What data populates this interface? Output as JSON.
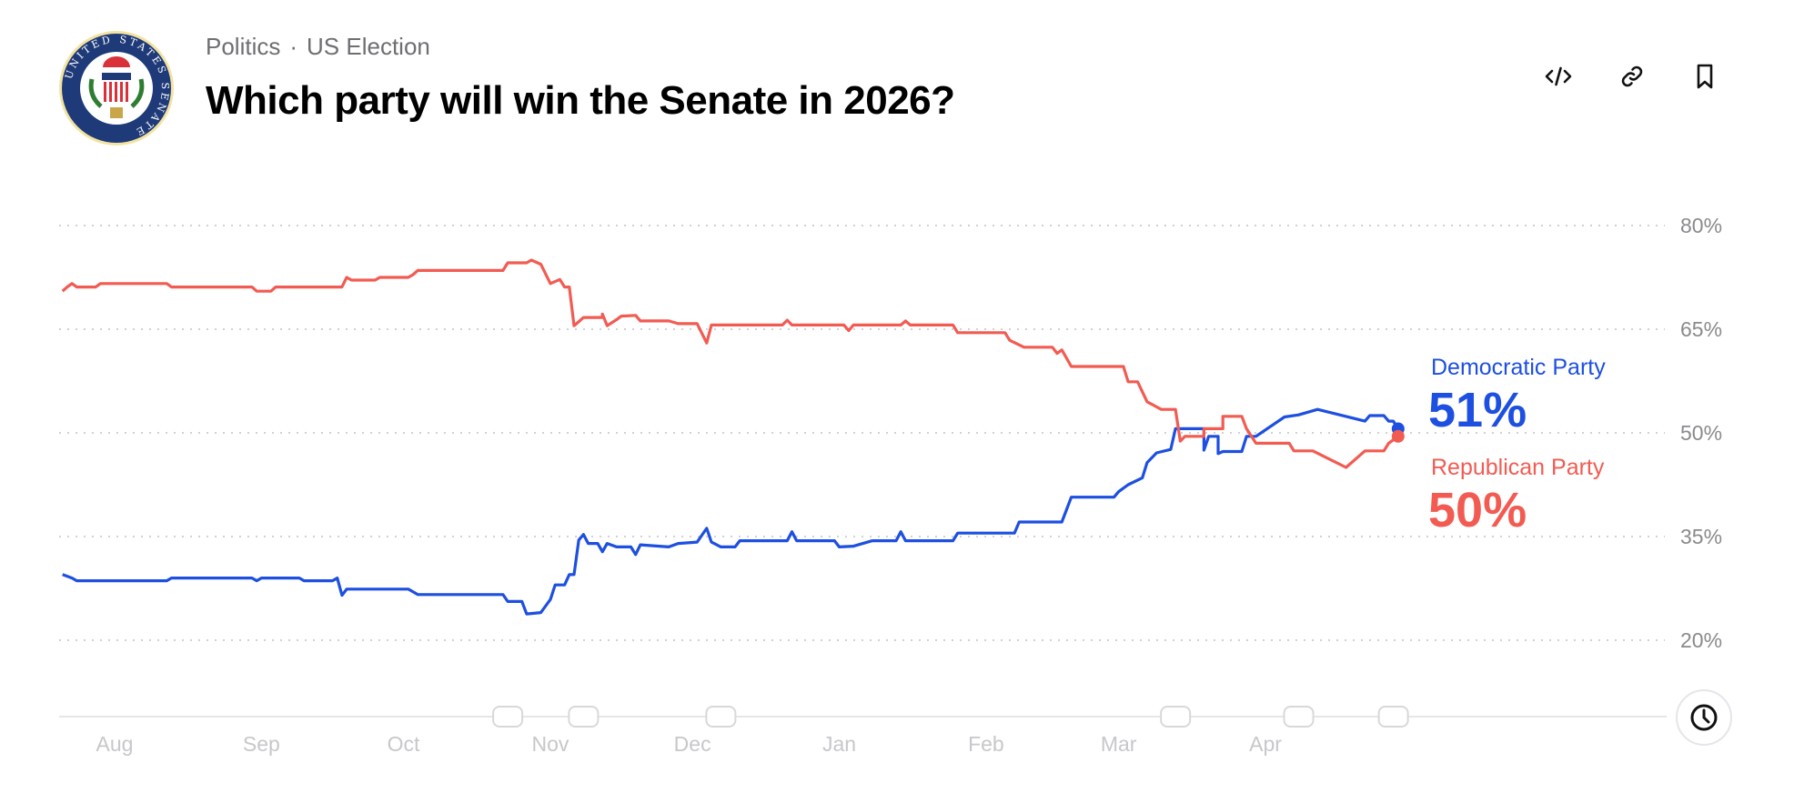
{
  "header": {
    "logo_text": "UNITED STATES SENATE",
    "breadcrumb": [
      "Politics",
      "US Election"
    ],
    "breadcrumb_separator": "·",
    "title": "Which party will win the Senate in 2026?",
    "actions": [
      {
        "name": "embed-code-icon"
      },
      {
        "name": "link-icon"
      },
      {
        "name": "bookmark-icon"
      }
    ]
  },
  "legend": {
    "democratic": {
      "name": "Democratic Party",
      "value": "51%",
      "color": "#1d4fe0"
    },
    "republican": {
      "name": "Republican Party",
      "value": "50%",
      "color": "#f25b52"
    }
  },
  "chart_data": {
    "type": "line",
    "title": "",
    "xlabel": "",
    "ylabel": "",
    "y_ticks": [
      "80%",
      "65%",
      "50%",
      "35%",
      "20%"
    ],
    "y_tick_values": [
      80,
      65,
      50,
      35,
      20
    ],
    "x_ticks": [
      "Aug",
      "Sep",
      "Oct",
      "Nov",
      "Dec",
      "Jan",
      "Feb",
      "Mar",
      "Apr"
    ],
    "x_tick_dates": [
      "2025-08-01",
      "2025-09-01",
      "2025-10-01",
      "2025-11-01",
      "2025-12-01",
      "2026-01-01",
      "2026-02-01",
      "2026-03-01",
      "2026-04-01"
    ],
    "grid": "horizontal dotted",
    "legend_placement": "right, at line ends",
    "timeline_markers": [
      "2025-10-23",
      "2025-11-08",
      "2025-12-07",
      "2026-03-13",
      "2026-04-08",
      "2026-04-28"
    ],
    "series": [
      {
        "name": "Democratic Party",
        "color": "#1d4fe0",
        "points": [
          [
            "2025-07-21",
            29.5
          ],
          [
            "2025-07-23",
            29.0
          ],
          [
            "2025-07-24",
            28.6
          ],
          [
            "2025-08-12",
            28.6
          ],
          [
            "2025-08-13",
            29.0
          ],
          [
            "2025-08-30",
            29.0
          ],
          [
            "2025-08-31",
            28.6
          ],
          [
            "2025-09-01",
            29.0
          ],
          [
            "2025-09-09",
            29.0
          ],
          [
            "2025-09-10",
            28.6
          ],
          [
            "2025-09-16",
            28.6
          ],
          [
            "2025-09-17",
            29.0
          ],
          [
            "2025-09-18",
            26.5
          ],
          [
            "2025-09-19",
            27.4
          ],
          [
            "2025-10-02",
            27.4
          ],
          [
            "2025-10-04",
            26.6
          ],
          [
            "2025-10-22",
            26.6
          ],
          [
            "2025-10-23",
            25.6
          ],
          [
            "2025-10-26",
            25.6
          ],
          [
            "2025-10-27",
            23.8
          ],
          [
            "2025-10-30",
            24.0
          ],
          [
            "2025-11-01",
            25.9
          ],
          [
            "2025-11-02",
            28.0
          ],
          [
            "2025-11-04",
            28.0
          ],
          [
            "2025-11-05",
            29.5
          ],
          [
            "2025-11-06",
            29.5
          ],
          [
            "2025-11-07",
            34.5
          ],
          [
            "2025-11-08",
            35.3
          ],
          [
            "2025-11-09",
            34.0
          ],
          [
            "2025-11-11",
            34.0
          ],
          [
            "2025-11-12",
            32.8
          ],
          [
            "2025-11-13",
            34.0
          ],
          [
            "2025-11-15",
            33.5
          ],
          [
            "2025-11-18",
            33.5
          ],
          [
            "2025-11-19",
            32.4
          ],
          [
            "2025-11-20",
            33.8
          ],
          [
            "2025-11-26",
            33.5
          ],
          [
            "2025-11-28",
            34.0
          ],
          [
            "2025-12-02",
            34.2
          ],
          [
            "2025-12-04",
            36.2
          ],
          [
            "2025-12-05",
            34.2
          ],
          [
            "2025-12-07",
            33.5
          ],
          [
            "2025-12-10",
            33.5
          ],
          [
            "2025-12-11",
            34.4
          ],
          [
            "2025-12-21",
            34.4
          ],
          [
            "2025-12-22",
            35.7
          ],
          [
            "2025-12-23",
            34.4
          ],
          [
            "2025-12-31",
            34.4
          ],
          [
            "2026-01-01",
            33.5
          ],
          [
            "2026-01-04",
            33.6
          ],
          [
            "2026-01-08",
            34.4
          ],
          [
            "2026-01-13",
            34.4
          ],
          [
            "2026-01-14",
            35.7
          ],
          [
            "2026-01-15",
            34.4
          ],
          [
            "2026-01-25",
            34.4
          ],
          [
            "2026-01-26",
            35.5
          ],
          [
            "2026-02-07",
            35.5
          ],
          [
            "2026-02-08",
            37.1
          ],
          [
            "2026-02-17",
            37.1
          ],
          [
            "2026-02-19",
            40.7
          ],
          [
            "2026-02-28",
            40.7
          ],
          [
            "2026-03-01",
            41.5
          ],
          [
            "2026-03-03",
            42.5
          ],
          [
            "2026-03-06",
            43.5
          ],
          [
            "2026-03-07",
            45.7
          ],
          [
            "2026-03-09",
            47.1
          ],
          [
            "2026-03-12",
            47.6
          ],
          [
            "2026-03-13",
            50.6
          ],
          [
            "2026-03-19",
            50.6
          ],
          [
            "2026-03-19",
            47.5
          ],
          [
            "2026-03-20",
            49.5
          ],
          [
            "2026-03-22",
            49.5
          ],
          [
            "2026-03-22",
            47.0
          ],
          [
            "2026-03-23",
            47.3
          ],
          [
            "2026-03-27",
            47.3
          ],
          [
            "2026-03-28",
            49.5
          ],
          [
            "2026-03-30",
            49.5
          ],
          [
            "2026-04-05",
            52.3
          ],
          [
            "2026-04-08",
            52.6
          ],
          [
            "2026-04-12",
            53.4
          ],
          [
            "2026-04-22",
            51.7
          ],
          [
            "2026-04-23",
            52.5
          ],
          [
            "2026-04-26",
            52.5
          ],
          [
            "2026-04-27",
            51.7
          ],
          [
            "2026-04-28",
            51.7
          ],
          [
            "2026-04-29",
            50.6
          ]
        ]
      },
      {
        "name": "Republican Party",
        "color": "#f25b52",
        "points": [
          [
            "2025-07-21",
            70.5
          ],
          [
            "2025-07-22",
            71.1
          ],
          [
            "2025-07-23",
            71.6
          ],
          [
            "2025-07-24",
            71.1
          ],
          [
            "2025-07-28",
            71.1
          ],
          [
            "2025-07-29",
            71.6
          ],
          [
            "2025-08-12",
            71.6
          ],
          [
            "2025-08-13",
            71.1
          ],
          [
            "2025-08-30",
            71.1
          ],
          [
            "2025-08-31",
            70.5
          ],
          [
            "2025-09-03",
            70.5
          ],
          [
            "2025-09-04",
            71.1
          ],
          [
            "2025-09-18",
            71.1
          ],
          [
            "2025-09-19",
            72.5
          ],
          [
            "2025-09-20",
            72.1
          ],
          [
            "2025-09-25",
            72.1
          ],
          [
            "2025-09-26",
            72.5
          ],
          [
            "2025-10-02",
            72.5
          ],
          [
            "2025-10-03",
            72.9
          ],
          [
            "2025-10-04",
            73.5
          ],
          [
            "2025-10-22",
            73.5
          ],
          [
            "2025-10-23",
            74.6
          ],
          [
            "2025-10-27",
            74.6
          ],
          [
            "2025-10-28",
            75.0
          ],
          [
            "2025-10-30",
            74.4
          ],
          [
            "2025-11-01",
            71.6
          ],
          [
            "2025-11-03",
            72.2
          ],
          [
            "2025-11-04",
            71.1
          ],
          [
            "2025-11-05",
            71.1
          ],
          [
            "2025-11-06",
            65.5
          ],
          [
            "2025-11-08",
            66.7
          ],
          [
            "2025-11-12",
            66.7
          ],
          [
            "2025-11-12",
            67.2
          ],
          [
            "2025-11-13",
            65.5
          ],
          [
            "2025-11-15",
            66.4
          ],
          [
            "2025-11-16",
            66.9
          ],
          [
            "2025-11-19",
            67.0
          ],
          [
            "2025-11-20",
            66.2
          ],
          [
            "2025-11-26",
            66.2
          ],
          [
            "2025-11-28",
            65.8
          ],
          [
            "2025-12-02",
            65.8
          ],
          [
            "2025-12-04",
            63.0
          ],
          [
            "2025-12-05",
            65.6
          ],
          [
            "2025-12-20",
            65.6
          ],
          [
            "2025-12-21",
            66.3
          ],
          [
            "2025-12-22",
            65.6
          ],
          [
            "2026-01-02",
            65.6
          ],
          [
            "2026-01-03",
            64.8
          ],
          [
            "2026-01-04",
            65.6
          ],
          [
            "2026-01-14",
            65.6
          ],
          [
            "2026-01-15",
            66.2
          ],
          [
            "2026-01-16",
            65.6
          ],
          [
            "2026-01-25",
            65.6
          ],
          [
            "2026-01-26",
            64.5
          ],
          [
            "2026-02-05",
            64.5
          ],
          [
            "2026-02-06",
            63.4
          ],
          [
            "2026-02-09",
            62.4
          ],
          [
            "2026-02-15",
            62.4
          ],
          [
            "2026-02-16",
            61.5
          ],
          [
            "2026-02-17",
            62.0
          ],
          [
            "2026-02-19",
            59.6
          ],
          [
            "2026-03-02",
            59.6
          ],
          [
            "2026-03-03",
            57.4
          ],
          [
            "2026-03-05",
            57.4
          ],
          [
            "2026-03-07",
            54.5
          ],
          [
            "2026-03-10",
            53.4
          ],
          [
            "2026-03-13",
            53.4
          ],
          [
            "2026-03-14",
            48.8
          ],
          [
            "2026-03-15",
            49.5
          ],
          [
            "2026-03-19",
            49.5
          ],
          [
            "2026-03-19",
            50.6
          ],
          [
            "2026-03-23",
            50.6
          ],
          [
            "2026-03-23",
            52.4
          ],
          [
            "2026-03-27",
            52.4
          ],
          [
            "2026-03-28",
            50.6
          ],
          [
            "2026-03-30",
            48.5
          ],
          [
            "2026-04-06",
            48.5
          ],
          [
            "2026-04-07",
            47.4
          ],
          [
            "2026-04-11",
            47.4
          ],
          [
            "2026-04-18",
            45.0
          ],
          [
            "2026-04-22",
            47.4
          ],
          [
            "2026-04-26",
            47.4
          ],
          [
            "2026-04-27",
            48.5
          ],
          [
            "2026-04-29",
            49.5
          ]
        ]
      }
    ]
  }
}
